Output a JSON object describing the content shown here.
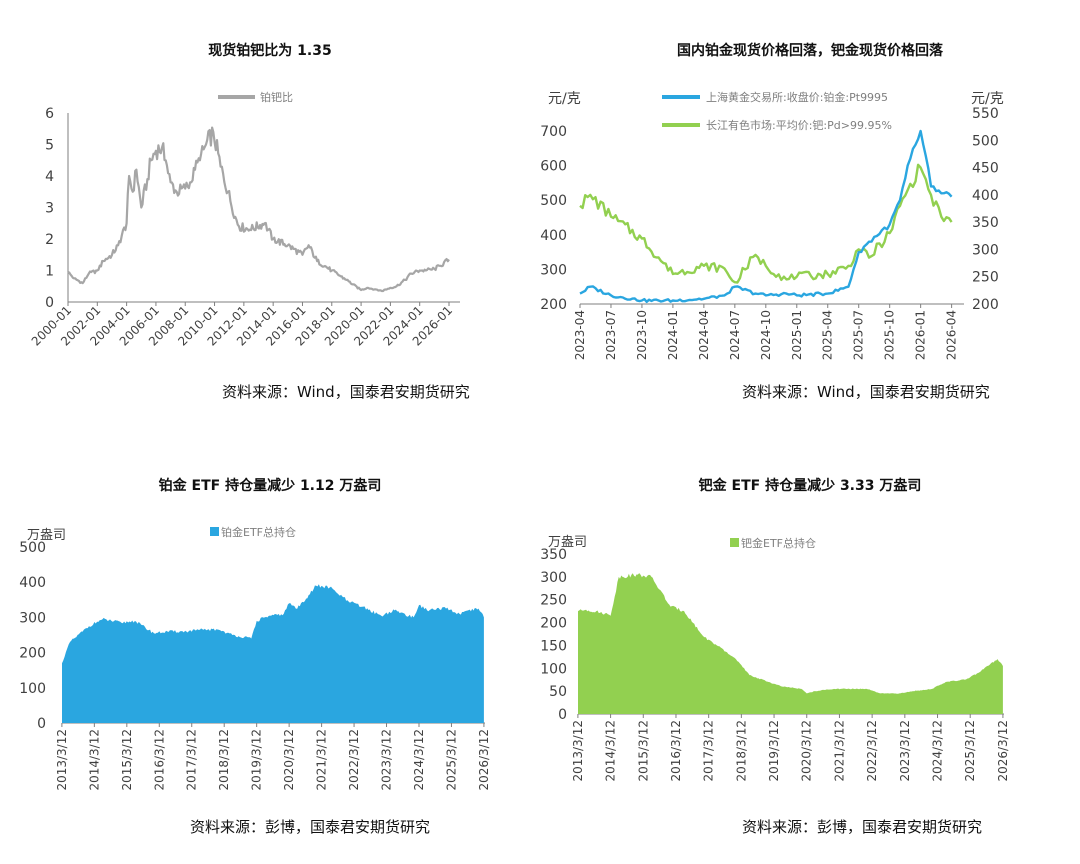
{
  "colors": {
    "ratio_line": "#a6a6a6",
    "pt": "#2aa6e0",
    "pd": "#92d050",
    "axis": "#7f7f7f",
    "text": "#404040"
  },
  "chart_data": [
    {
      "type": "line",
      "title": "现货铂钯比为 1.35",
      "source": "资料来源：Wind，国泰君安期货研究",
      "legend": "top",
      "series": [
        {
          "name": "铂钯比",
          "points": [
            [
              "2000-01",
              0.95
            ],
            [
              "2000-06",
              0.75
            ],
            [
              "2001-01",
              0.6
            ],
            [
              "2001-06",
              0.9
            ],
            [
              "2002-01",
              1.0
            ],
            [
              "2002-06",
              1.3
            ],
            [
              "2003-01",
              1.5
            ],
            [
              "2003-06",
              1.8
            ],
            [
              "2004-01",
              2.5
            ],
            [
              "2004-03",
              4.0
            ],
            [
              "2004-06",
              3.5
            ],
            [
              "2004-09",
              4.2
            ],
            [
              "2005-01",
              3.0
            ],
            [
              "2005-06",
              3.9
            ],
            [
              "2005-09",
              4.5
            ],
            [
              "2006-01",
              4.8
            ],
            [
              "2006-06",
              4.9
            ],
            [
              "2006-09",
              4.5
            ],
            [
              "2007-01",
              3.8
            ],
            [
              "2007-06",
              3.5
            ],
            [
              "2008-01",
              3.6
            ],
            [
              "2008-06",
              3.8
            ],
            [
              "2008-09",
              4.2
            ],
            [
              "2009-01",
              4.5
            ],
            [
              "2009-06",
              5.0
            ],
            [
              "2009-12",
              5.4
            ],
            [
              "2010-06",
              4.3
            ],
            [
              "2010-12",
              3.5
            ],
            [
              "2011-06",
              2.7
            ],
            [
              "2011-09",
              2.4
            ],
            [
              "2012-06",
              2.3
            ],
            [
              "2013-06",
              2.5
            ],
            [
              "2014-01",
              2.0
            ],
            [
              "2015-01",
              1.8
            ],
            [
              "2016-01",
              1.5
            ],
            [
              "2016-06",
              1.8
            ],
            [
              "2017-01",
              1.3
            ],
            [
              "2018-01",
              1.0
            ],
            [
              "2019-01",
              0.7
            ],
            [
              "2020-01",
              0.38
            ],
            [
              "2020-06",
              0.45
            ],
            [
              "2021-01",
              0.4
            ],
            [
              "2021-06",
              0.35
            ],
            [
              "2022-01",
              0.45
            ],
            [
              "2022-06",
              0.5
            ],
            [
              "2023-01",
              0.7
            ],
            [
              "2023-06",
              0.9
            ],
            [
              "2024-01",
              1.0
            ],
            [
              "2024-06",
              1.0
            ],
            [
              "2025-01",
              1.05
            ],
            [
              "2025-06",
              1.15
            ],
            [
              "2026-01",
              1.35
            ]
          ]
        }
      ],
      "x_ticks": [
        "2000-01",
        "2002-01",
        "2004-01",
        "2006-01",
        "2008-01",
        "2010-01",
        "2012-01",
        "2014-01",
        "2016-01",
        "2018-01",
        "2020-01",
        "2022-01",
        "2024-01",
        "2026-01"
      ],
      "y_ticks": [
        "0",
        "1",
        "2",
        "3",
        "4",
        "5",
        "6"
      ],
      "ylim": [
        0,
        6
      ]
    },
    {
      "type": "line",
      "title": "国内铂金现货价格回落，钯金现货价格回落",
      "source": "资料来源：Wind，国泰君安期货研究",
      "legend": "top",
      "ylabel_left": "元/克",
      "ylabel_right": "元/克",
      "series": [
        {
          "name": "上海黄金交易所:收盘价:铂金:Pt9995",
          "axis": "left",
          "ylim": [
            200,
            700
          ],
          "points": [
            [
              "2023-04",
              230
            ],
            [
              "2023-05",
              250
            ],
            [
              "2023-07",
              225
            ],
            [
              "2023-10",
              210
            ],
            [
              "2024-01",
              210
            ],
            [
              "2024-04",
              215
            ],
            [
              "2024-06",
              225
            ],
            [
              "2024-07",
              250
            ],
            [
              "2024-09",
              230
            ],
            [
              "2024-10",
              225
            ],
            [
              "2024-12",
              230
            ],
            [
              "2025-01",
              225
            ],
            [
              "2025-04",
              230
            ],
            [
              "2025-06",
              250
            ],
            [
              "2025-07",
              350
            ],
            [
              "2025-08",
              380
            ],
            [
              "2025-10",
              430
            ],
            [
              "2025-11",
              500
            ],
            [
              "2025-12",
              620
            ],
            [
              "2026-01",
              700
            ],
            [
              "2026-02",
              540
            ],
            [
              "2026-03",
              520
            ],
            [
              "2026-04",
              510
            ]
          ]
        },
        {
          "name": "长江有色市场:平均价:钯:Pd>99.95%",
          "axis": "right",
          "ylim": [
            200,
            550
          ],
          "points": [
            [
              "2023-04",
              380
            ],
            [
              "2023-05",
              400
            ],
            [
              "2023-07",
              360
            ],
            [
              "2023-10",
              320
            ],
            [
              "2024-01",
              255
            ],
            [
              "2024-04",
              270
            ],
            [
              "2024-06",
              265
            ],
            [
              "2024-07",
              240
            ],
            [
              "2024-09",
              290
            ],
            [
              "2024-10",
              270
            ],
            [
              "2024-12",
              245
            ],
            [
              "2025-01",
              250
            ],
            [
              "2025-04",
              255
            ],
            [
              "2025-06",
              270
            ],
            [
              "2025-07",
              300
            ],
            [
              "2025-08",
              285
            ],
            [
              "2025-10",
              330
            ],
            [
              "2025-11",
              380
            ],
            [
              "2025-12",
              420
            ],
            [
              "2026-01",
              450
            ],
            [
              "2026-02",
              400
            ],
            [
              "2026-03",
              360
            ],
            [
              "2026-04",
              350
            ]
          ]
        }
      ],
      "x_ticks": [
        "2023-04",
        "2023-07",
        "2023-10",
        "2024-01",
        "2024-04",
        "2024-07",
        "2024-10",
        "2025-01",
        "2025-04",
        "2025-07",
        "2025-10",
        "2026-01",
        "2026-04"
      ],
      "y_left_ticks": [
        "200",
        "300",
        "400",
        "500",
        "600",
        "700"
      ],
      "y_right_ticks": [
        "200",
        "250",
        "300",
        "350",
        "400",
        "450",
        "500",
        "550"
      ]
    },
    {
      "type": "area",
      "title": "铂金 ETF 持仓量减少 1.12 万盎司",
      "source": "资料来源：彭博，国泰君安期货研究",
      "legend": "top",
      "ylabel": "万盎司",
      "series": [
        {
          "name": "铂金ETF总持仓",
          "points": [
            [
              "2013-03",
              170
            ],
            [
              "2013-06",
              230
            ],
            [
              "2014-01",
              275
            ],
            [
              "2014-06",
              295
            ],
            [
              "2015-01",
              285
            ],
            [
              "2015-06",
              290
            ],
            [
              "2016-01",
              255
            ],
            [
              "2016-06",
              260
            ],
            [
              "2017-01",
              260
            ],
            [
              "2017-06",
              265
            ],
            [
              "2018-01",
              265
            ],
            [
              "2018-06",
              250
            ],
            [
              "2019-01",
              240
            ],
            [
              "2019-03",
              290
            ],
            [
              "2019-06",
              300
            ],
            [
              "2020-01",
              310
            ],
            [
              "2020-03",
              340
            ],
            [
              "2020-06",
              325
            ],
            [
              "2021-01",
              390
            ],
            [
              "2021-06",
              385
            ],
            [
              "2022-01",
              345
            ],
            [
              "2022-06",
              330
            ],
            [
              "2023-01",
              305
            ],
            [
              "2023-06",
              320
            ],
            [
              "2024-01",
              300
            ],
            [
              "2024-03",
              335
            ],
            [
              "2024-06",
              320
            ],
            [
              "2025-01",
              325
            ],
            [
              "2025-06",
              310
            ],
            [
              "2026-01",
              325
            ],
            [
              "2026-03",
              300
            ]
          ]
        }
      ],
      "x_ticks": [
        "2013/3/12",
        "2014/3/12",
        "2015/3/12",
        "2016/3/12",
        "2017/3/12",
        "2018/3/12",
        "2019/3/12",
        "2020/3/12",
        "2021/3/12",
        "2022/3/12",
        "2023/3/12",
        "2024/3/12",
        "2025/3/12",
        "2026/3/12"
      ],
      "y_ticks": [
        "0",
        "100",
        "200",
        "300",
        "400",
        "500"
      ],
      "ylim": [
        0,
        500
      ]
    },
    {
      "type": "area",
      "title": "钯金 ETF 持仓量减少 3.33 万盎司",
      "source": "资料来源：彭博，国泰君安期货研究",
      "legend": "top",
      "ylabel": "万盎司",
      "series": [
        {
          "name": "钯金ETF总持仓",
          "points": [
            [
              "2013-03",
              225
            ],
            [
              "2013-06",
              228
            ],
            [
              "2014-01",
              220
            ],
            [
              "2014-03",
              215
            ],
            [
              "2014-06",
              300
            ],
            [
              "2015-01",
              305
            ],
            [
              "2015-06",
              300
            ],
            [
              "2016-01",
              235
            ],
            [
              "2016-06",
              225
            ],
            [
              "2017-01",
              170
            ],
            [
              "2017-06",
              150
            ],
            [
              "2018-01",
              120
            ],
            [
              "2018-06",
              85
            ],
            [
              "2019-01",
              70
            ],
            [
              "2019-06",
              60
            ],
            [
              "2020-01",
              55
            ],
            [
              "2020-03",
              45
            ],
            [
              "2020-06",
              50
            ],
            [
              "2021-01",
              55
            ],
            [
              "2021-06",
              55
            ],
            [
              "2022-01",
              55
            ],
            [
              "2022-06",
              45
            ],
            [
              "2023-01",
              45
            ],
            [
              "2023-06",
              50
            ],
            [
              "2024-01",
              55
            ],
            [
              "2024-06",
              70
            ],
            [
              "2025-01",
              75
            ],
            [
              "2025-06",
              90
            ],
            [
              "2026-01",
              120
            ],
            [
              "2026-03",
              105
            ]
          ]
        }
      ],
      "x_ticks": [
        "2013/3/12",
        "2014/3/12",
        "2015/3/12",
        "2016/3/12",
        "2017/3/12",
        "2018/3/12",
        "2019/3/12",
        "2020/3/12",
        "2021/3/12",
        "2022/3/12",
        "2023/3/12",
        "2024/3/12",
        "2025/3/12",
        "2026/3/12"
      ],
      "y_ticks": [
        "0",
        "50",
        "100",
        "150",
        "200",
        "250",
        "300",
        "350"
      ],
      "ylim": [
        0,
        350
      ]
    }
  ]
}
